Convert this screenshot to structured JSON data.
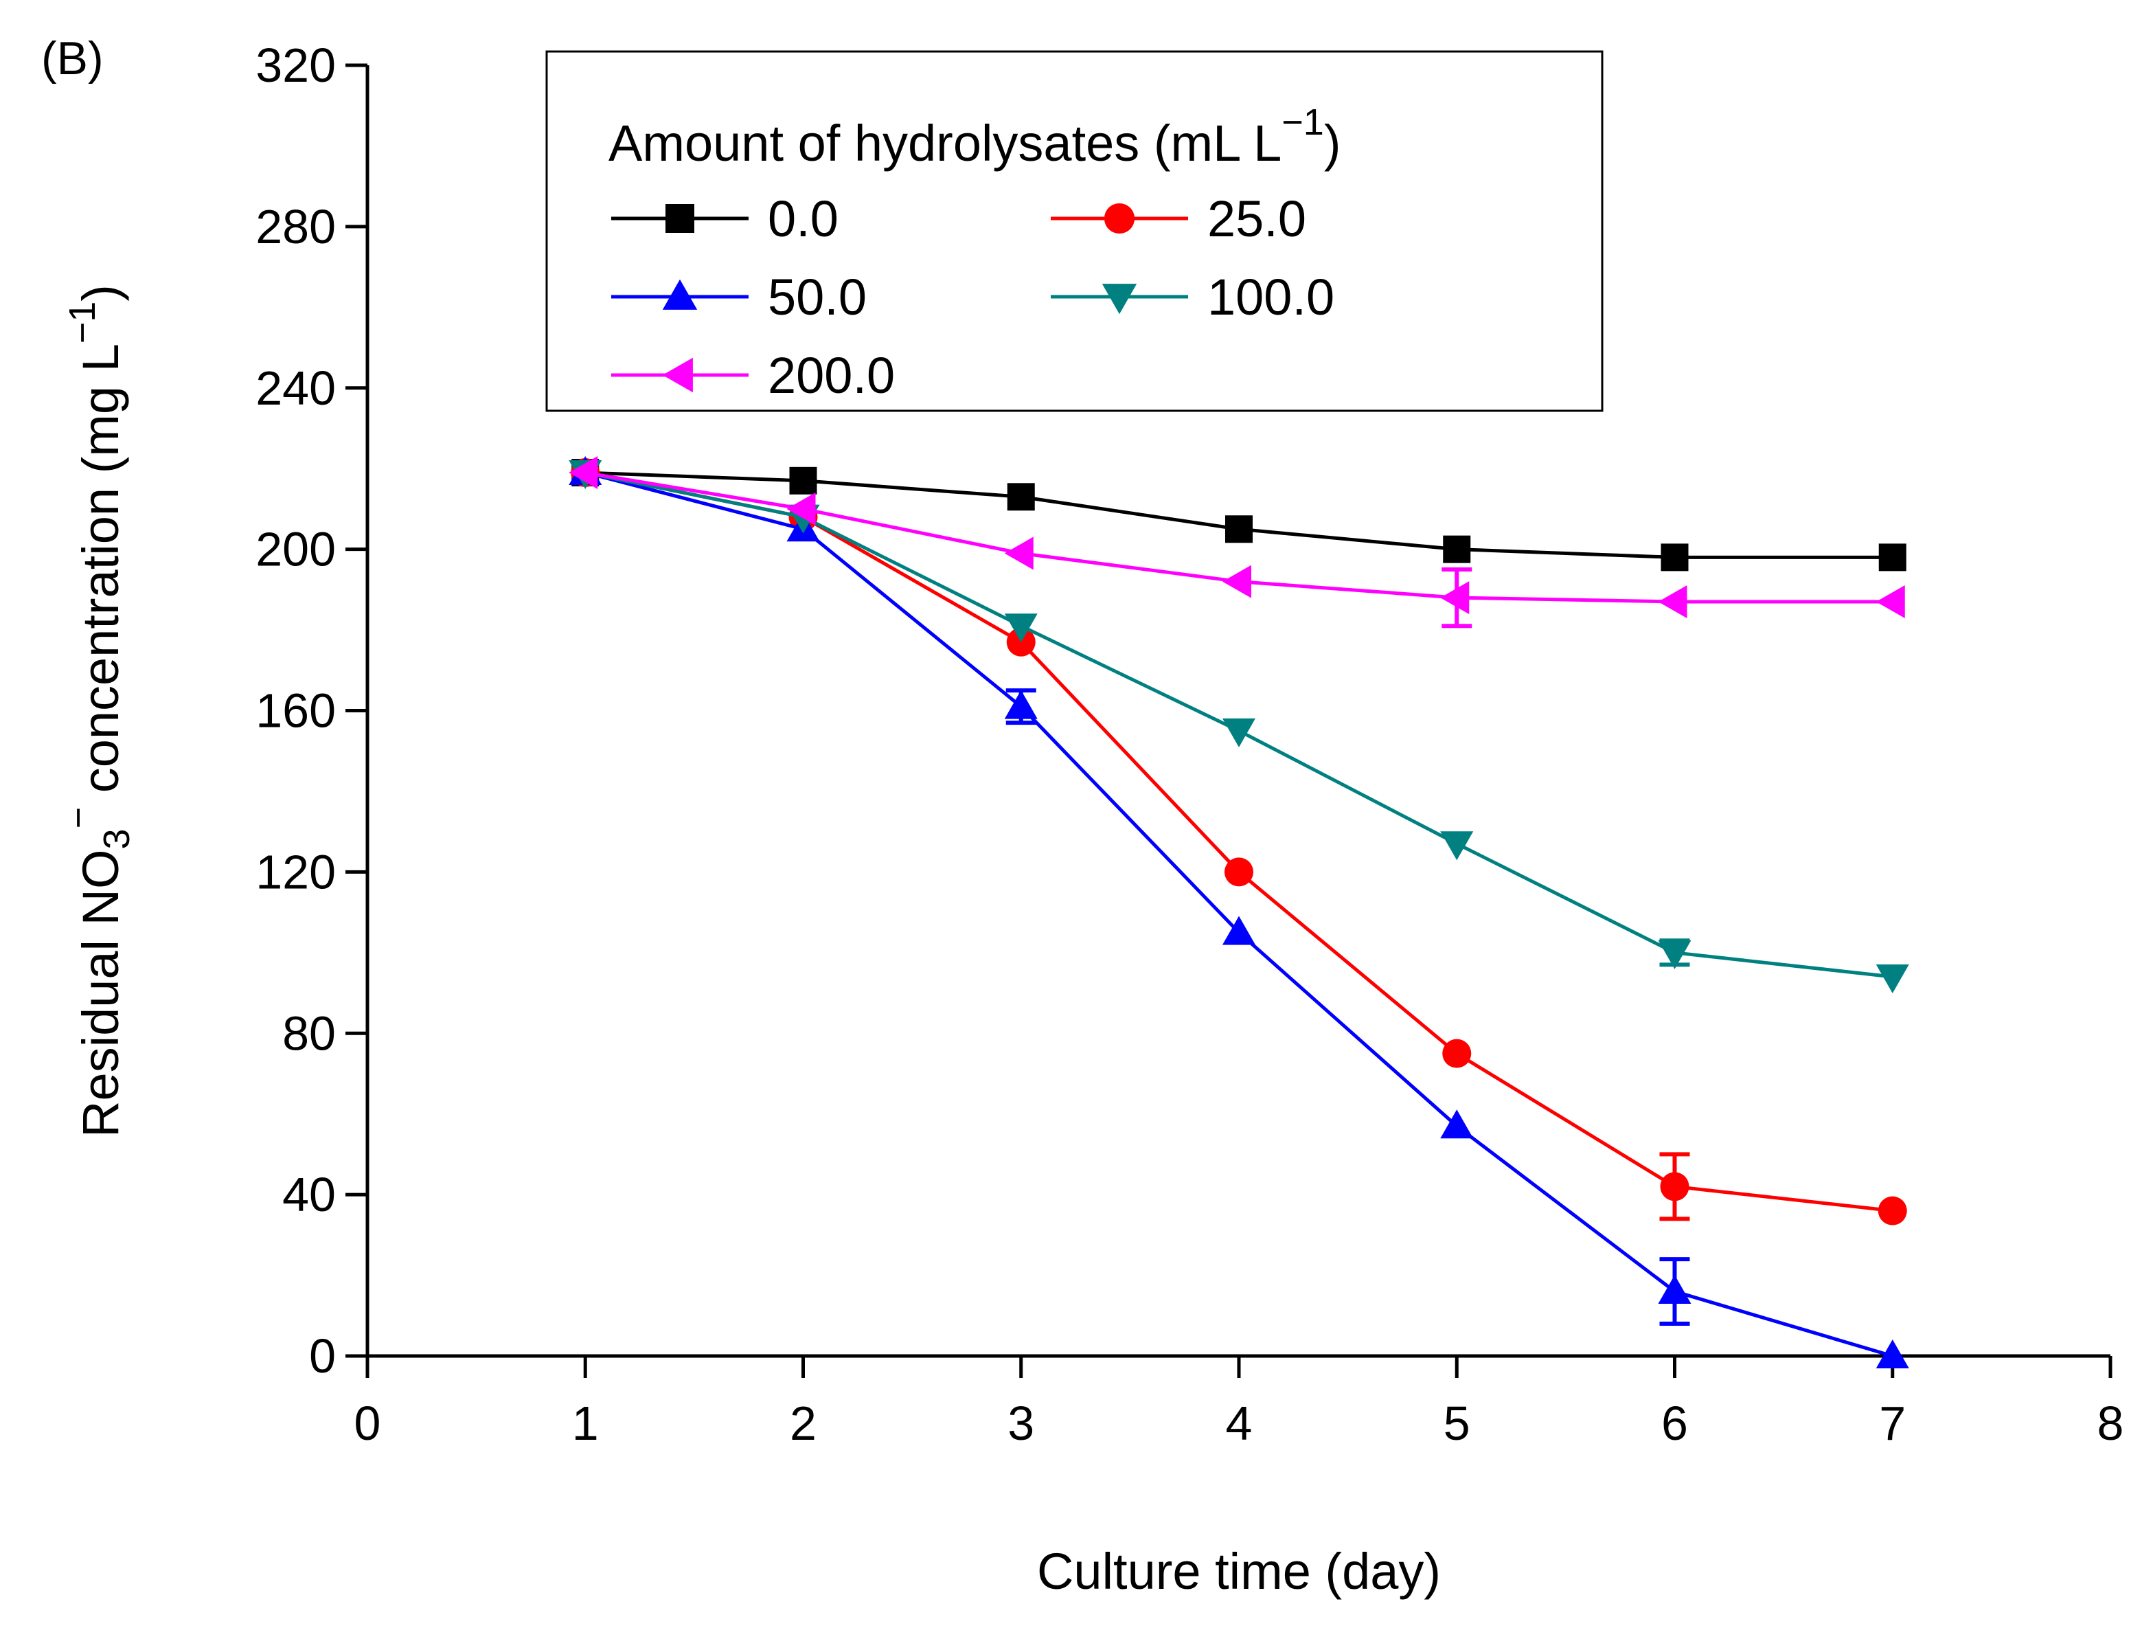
{
  "chart_data": {
    "type": "line",
    "panel_label": "(B)",
    "title": "",
    "xlabel": "Culture time (day)",
    "ylabel": {
      "main": "Residual NO",
      "sub": "3",
      "sup": "−",
      "rest": " concentration (mg L",
      "unit_sup": "−1",
      "close": ")"
    },
    "xlim": [
      0,
      8
    ],
    "ylim": [
      0,
      320
    ],
    "x_ticks": [
      0,
      1,
      2,
      3,
      4,
      5,
      6,
      7,
      8
    ],
    "y_ticks": [
      0,
      40,
      80,
      120,
      160,
      200,
      240,
      280,
      320
    ],
    "grid": false,
    "legend": {
      "placement": "top-left",
      "title": "Amount of hydrolysates (mL L",
      "title_sup": "−1",
      "title_close": ")"
    },
    "x": [
      1,
      2,
      3,
      4,
      5,
      6,
      7
    ],
    "series": [
      {
        "name": "0.0",
        "color": "#000000",
        "marker": "square",
        "values": [
          219,
          217,
          213,
          205,
          200,
          198,
          198
        ],
        "errors": [
          0,
          0,
          0,
          0,
          0,
          0,
          0
        ]
      },
      {
        "name": "25.0",
        "color": "#ff0000",
        "marker": "circle",
        "values": [
          219,
          208,
          177,
          120,
          75,
          42,
          36
        ],
        "errors": [
          0,
          0,
          0,
          0,
          0,
          8,
          0
        ]
      },
      {
        "name": "50.0",
        "color": "#0000ff",
        "marker": "triangle-up",
        "values": [
          219,
          205,
          161,
          105,
          57,
          16,
          0
        ],
        "errors": [
          0,
          0,
          4,
          0,
          0,
          8,
          0
        ]
      },
      {
        "name": "100.0",
        "color": "#008080",
        "marker": "triangle-down",
        "values": [
          219,
          208,
          181,
          155,
          127,
          100,
          94
        ],
        "errors": [
          0,
          0,
          0,
          0,
          0,
          3,
          0
        ]
      },
      {
        "name": "200.0",
        "color": "#ff00ff",
        "marker": "triangle-left",
        "values": [
          219,
          210,
          199,
          192,
          188,
          187,
          187
        ],
        "errors": [
          0,
          0,
          0,
          0,
          7,
          0,
          0
        ]
      }
    ]
  }
}
